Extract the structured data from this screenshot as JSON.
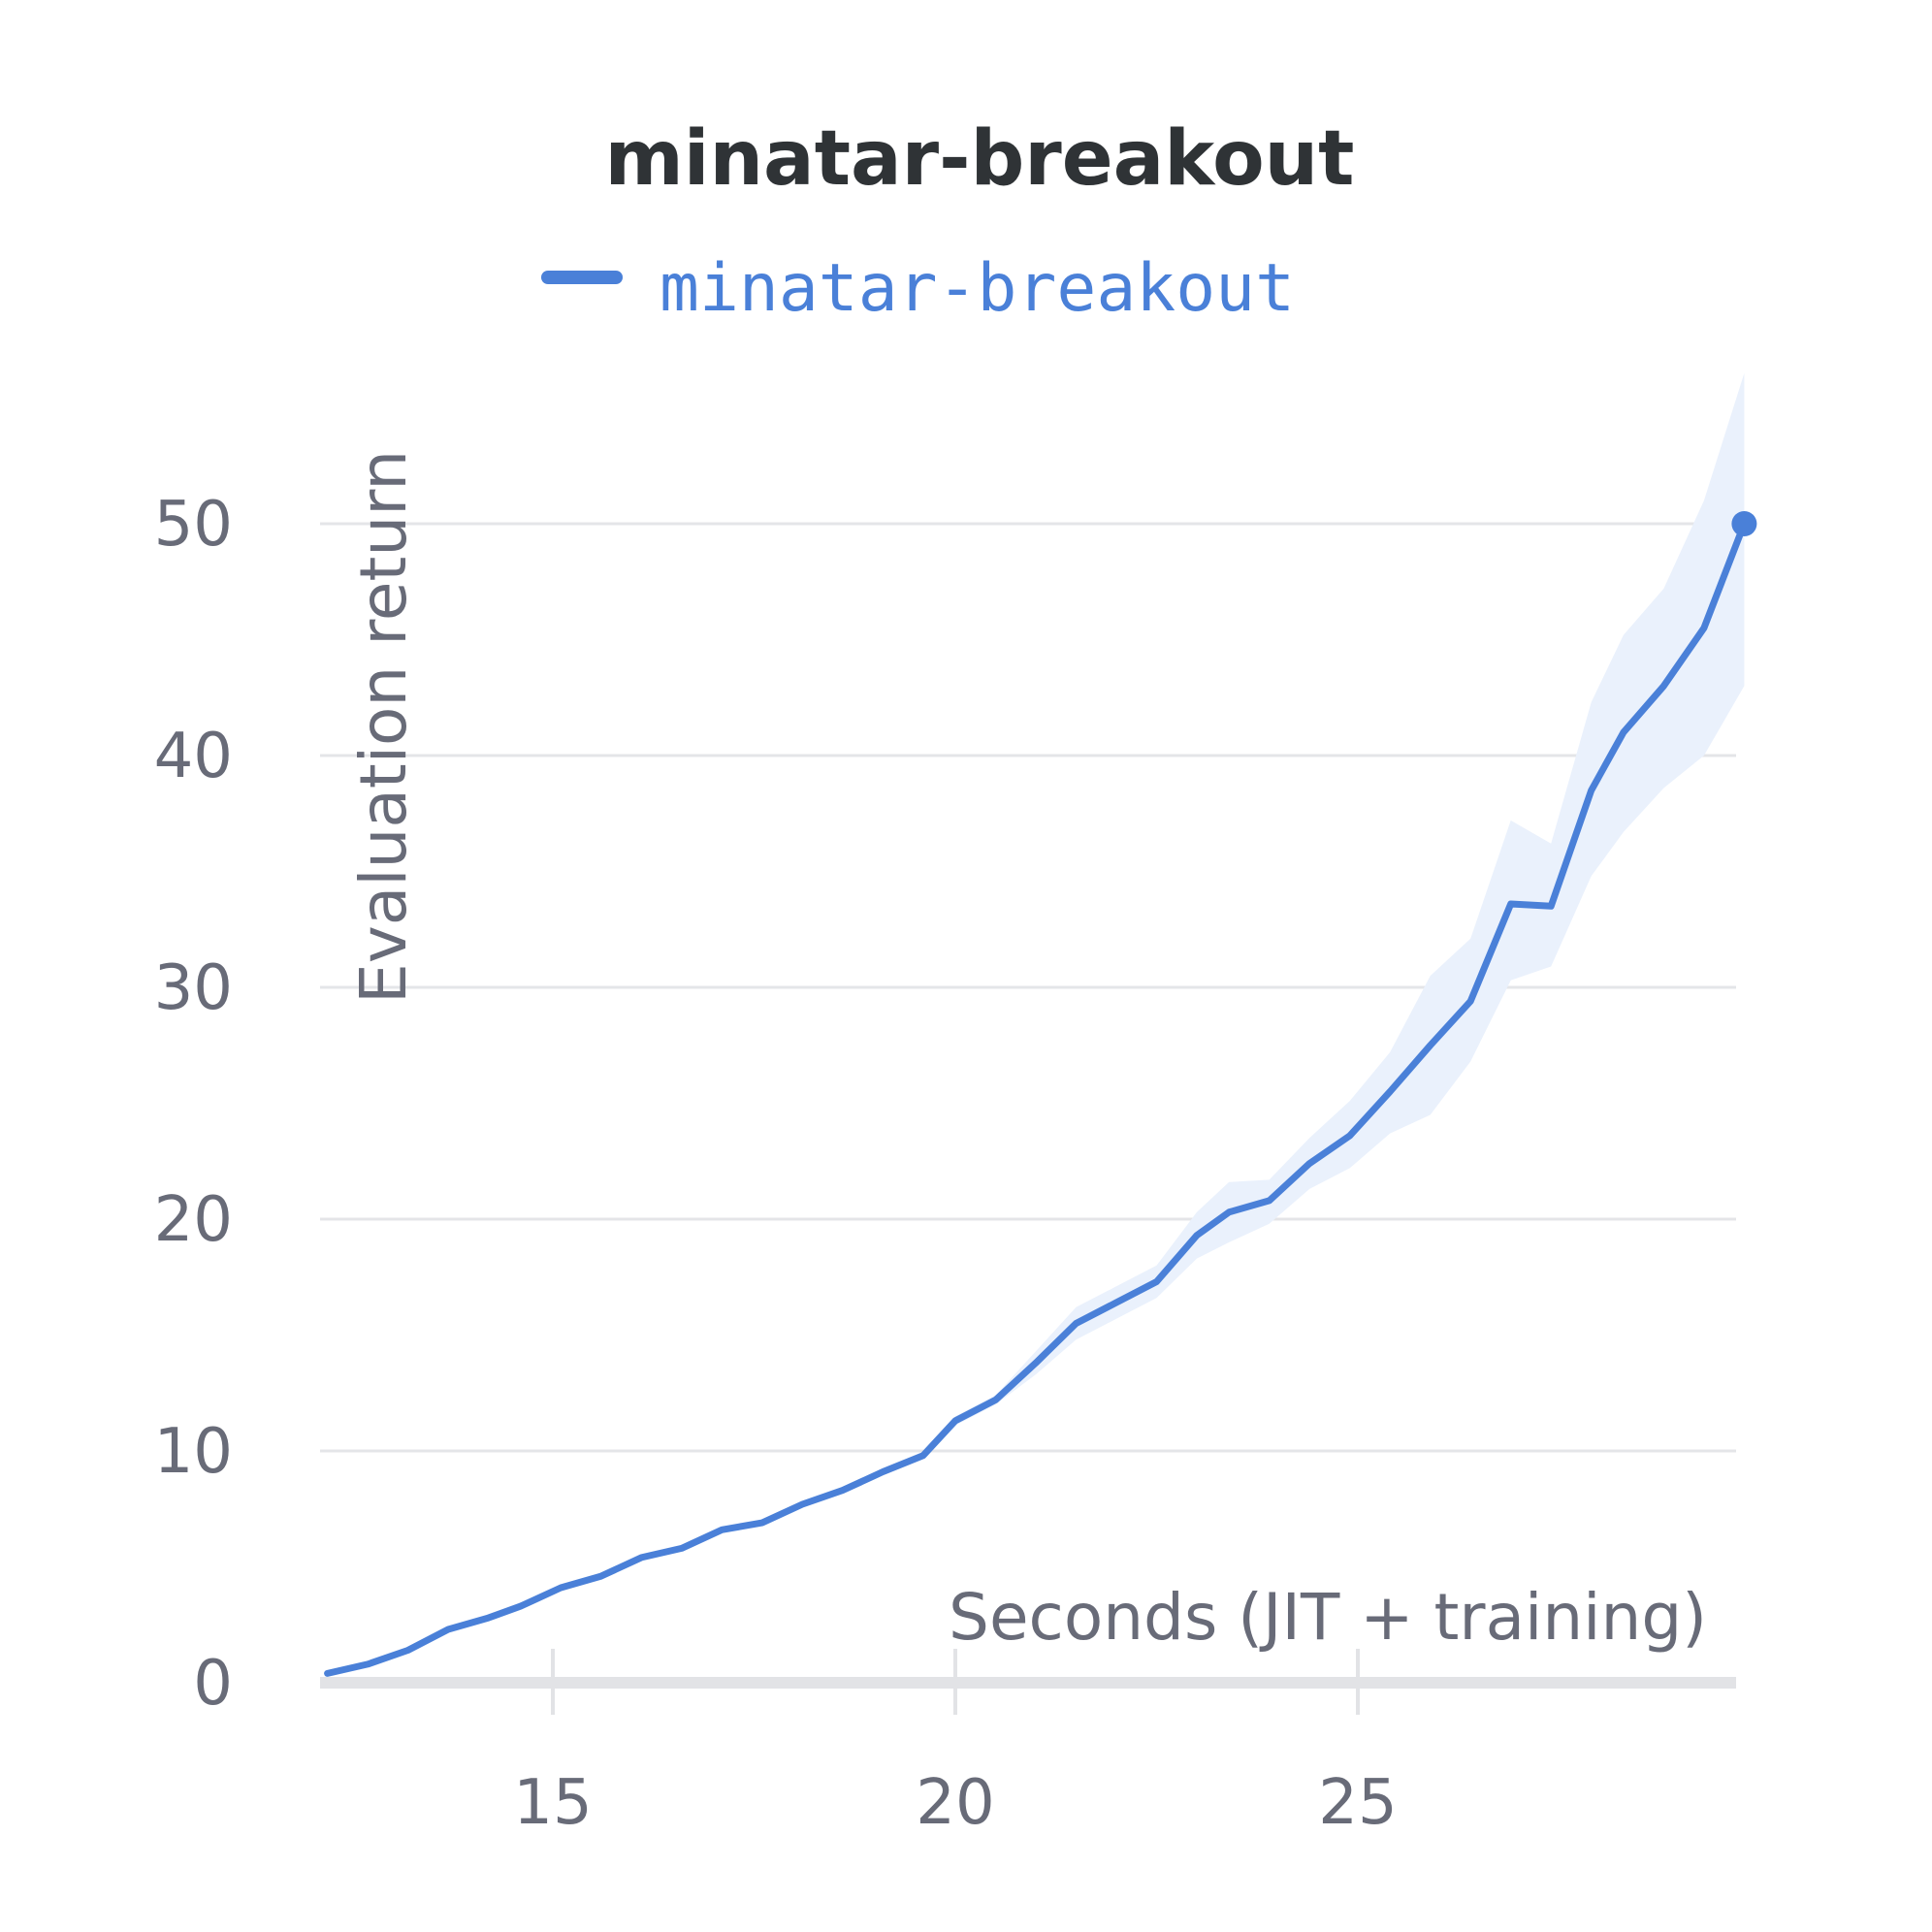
{
  "chart_data": {
    "type": "line",
    "title": "minatar-breakout",
    "xlabel": "Seconds (JIT + training)",
    "ylabel": "Evaluation return",
    "xlim": [
      12.2,
      29.8
    ],
    "ylim": [
      0,
      57
    ],
    "x_ticks": [
      15,
      20,
      25
    ],
    "y_ticks": [
      0,
      10,
      20,
      30,
      40,
      50
    ],
    "grid": true,
    "legend": "top-center",
    "colors": {
      "line": "#4a80d8",
      "band": "#eaf1fc"
    },
    "series": [
      {
        "name": "minatar-breakout",
        "x": [
          12.2,
          12.7,
          13.2,
          13.7,
          14.2,
          14.6,
          15.1,
          15.6,
          16.1,
          16.6,
          17.1,
          17.6,
          18.1,
          18.6,
          19.1,
          19.6,
          20.0,
          20.5,
          21.0,
          21.5,
          22.0,
          22.5,
          23.0,
          23.4,
          23.9,
          24.4,
          24.9,
          25.4,
          25.9,
          26.4,
          26.9,
          27.4,
          27.9,
          28.3,
          28.8,
          29.3,
          29.8
        ],
        "y": [
          0.4,
          0.8,
          1.4,
          2.3,
          2.8,
          3.3,
          4.1,
          4.6,
          5.4,
          5.8,
          6.6,
          6.9,
          7.7,
          8.3,
          9.1,
          9.8,
          11.3,
          12.2,
          13.8,
          15.5,
          16.4,
          17.3,
          19.3,
          20.3,
          20.8,
          22.4,
          23.6,
          25.5,
          27.5,
          29.4,
          33.6,
          33.5,
          38.5,
          41.0,
          43.0,
          45.5,
          50.0
        ],
        "upper": [
          0.5,
          0.9,
          1.5,
          2.4,
          2.9,
          3.4,
          4.2,
          4.7,
          5.5,
          5.9,
          6.7,
          7.0,
          7.8,
          8.4,
          9.2,
          9.9,
          11.5,
          12.4,
          14.3,
          16.2,
          17.1,
          18.0,
          20.3,
          21.6,
          21.7,
          23.5,
          25.1,
          27.2,
          30.5,
          32.1,
          37.2,
          36.2,
          42.3,
          45.2,
          47.2,
          51.0,
          56.5
        ],
        "lower": [
          0.3,
          0.7,
          1.3,
          2.2,
          2.7,
          3.2,
          4.0,
          4.5,
          5.3,
          5.7,
          6.5,
          6.8,
          7.6,
          8.2,
          9.0,
          9.7,
          11.1,
          12.0,
          13.3,
          14.8,
          15.7,
          16.6,
          18.3,
          19.0,
          19.8,
          21.3,
          22.2,
          23.7,
          24.5,
          26.8,
          30.3,
          30.9,
          34.8,
          36.7,
          38.6,
          40.0,
          43.0
        ]
      }
    ]
  }
}
